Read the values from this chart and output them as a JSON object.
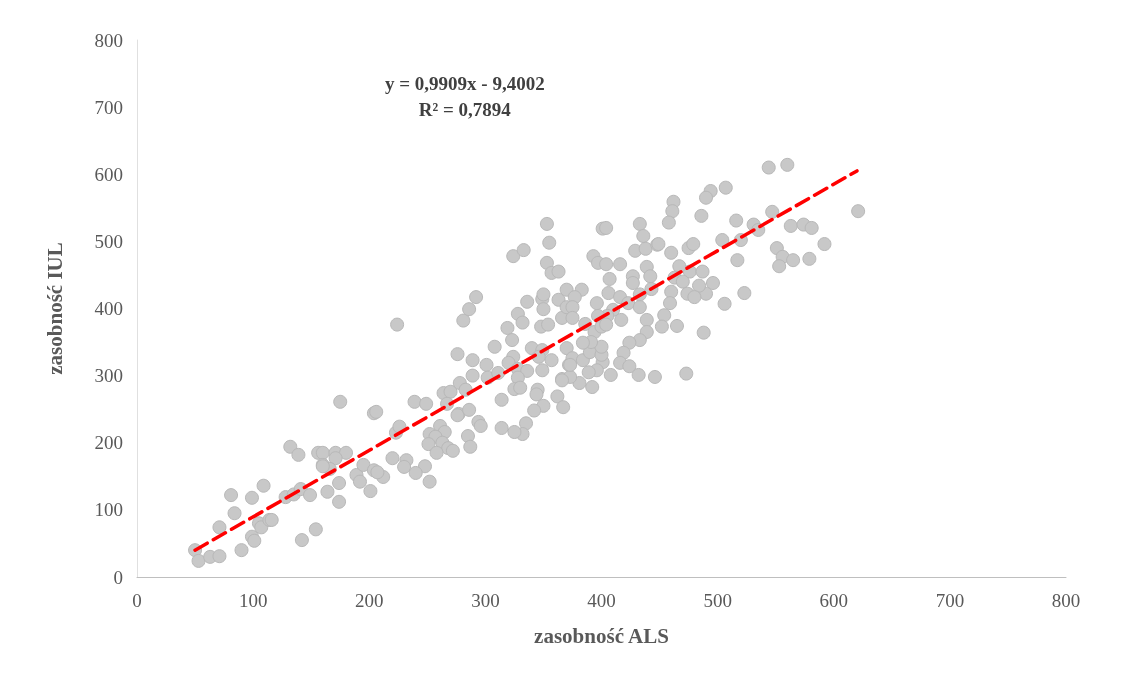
{
  "chart_data": {
    "type": "scatter",
    "xlabel": "zasobność ALS",
    "ylabel": "zasobność IUL",
    "annotations": [
      "y = 0,9909x - 9,4002",
      "R² = 0,7894"
    ],
    "xlim": [
      0,
      800
    ],
    "xticks": [
      0,
      100,
      200,
      300,
      400,
      500,
      600,
      700,
      800
    ],
    "ylim": [
      0,
      800
    ],
    "yticks": [
      0,
      100,
      200,
      300,
      400,
      500,
      600,
      700,
      800
    ],
    "grid": false,
    "marker": "circle",
    "series": [
      {
        "color": "#c8c8c8",
        "x": [
          50,
          53,
          63,
          71,
          71,
          84,
          81,
          90,
          99,
          109,
          99,
          101,
          105,
          107,
          114,
          116,
          142,
          154,
          128,
          135,
          141,
          149,
          132,
          139,
          156,
          160,
          171,
          180,
          171,
          160,
          166,
          175,
          189,
          192,
          201,
          174,
          174,
          164,
          204,
          195,
          224,
          206,
          239,
          249,
          276,
          281,
          286,
          264,
          270,
          278,
          267,
          277,
          223,
          226,
          252,
          261,
          265,
          257,
          251,
          263,
          268,
          258,
          272,
          220,
          232,
          230,
          248,
          160,
          204,
          212,
          240,
          292,
          289,
          301,
          302,
          289,
          283,
          276,
          286,
          294,
          296,
          285,
          287,
          252,
          207,
          308,
          319,
          323,
          328,
          332,
          336,
          349,
          350,
          348,
          354,
          363,
          366,
          370,
          340,
          349,
          357,
          346,
          324,
          320,
          328,
          336,
          328,
          311,
          325,
          330,
          345,
          344,
          349,
          366,
          314,
          362,
          367,
          350,
          342,
          335,
          332,
          325,
          314,
          370,
          372,
          324,
          333,
          353,
          355,
          353,
          357,
          363,
          401,
          404,
          433,
          436,
          429,
          438,
          393,
          397,
          404,
          416,
          448,
          407,
          427,
          439,
          442,
          427,
          433,
          443,
          370,
          383,
          377,
          350,
          396,
          375,
          375,
          406,
          416,
          423,
          433,
          410,
          417,
          405,
          439,
          397,
          386,
          394,
          400,
          404,
          439,
          433,
          424,
          419,
          416,
          424,
          432,
          408,
          401,
          396,
          389,
          392,
          381,
          373,
          366,
          375,
          373,
          384,
          390,
          400,
          400,
          391,
          384,
          544,
          560,
          621,
          507,
          494,
          490,
          462,
          461,
          458,
          486,
          516,
          547,
          531,
          535,
          563,
          574,
          581,
          592,
          551,
          556,
          553,
          565,
          579,
          517,
          504,
          520,
          523,
          506,
          496,
          490,
          484,
          476,
          487,
          467,
          475,
          479,
          460,
          449,
          463,
          470,
          460,
          459,
          474,
          480,
          454,
          465,
          452,
          488,
          446,
          473
        ],
        "values": [
          40,
          24,
          30,
          31,
          74,
          95,
          122,
          40,
          118,
          136,
          60,
          54,
          80,
          74,
          85,
          85,
          55,
          71,
          119,
          123,
          131,
          122,
          194,
          182,
          185,
          185,
          185,
          185,
          177,
          167,
          161,
          261,
          152,
          142,
          128,
          140,
          112,
          127,
          244,
          167,
          376,
          246,
          261,
          258,
          332,
          382,
          399,
          274,
          276,
          289,
          258,
          243,
          215,
          224,
          213,
          225,
          216,
          209,
          198,
          200,
          192,
          185,
          188,
          177,
          174,
          164,
          165,
          165,
          159,
          149,
          155,
          417,
          323,
          316,
          297,
          300,
          279,
          241,
          249,
          231,
          225,
          210,
          194,
          142,
          156,
          343,
          371,
          353,
          392,
          379,
          410,
          414,
          399,
          373,
          376,
          413,
          386,
          402,
          341,
          338,
          323,
          328,
          328,
          319,
          310,
          307,
          297,
          304,
          280,
          282,
          279,
          272,
          308,
          295,
          264,
          269,
          253,
          255,
          248,
          229,
          213,
          216,
          222,
          341,
          316,
          478,
          487,
          526,
          498,
          468,
          453,
          455,
          519,
          520,
          526,
          508,
          486,
          489,
          478,
          468,
          466,
          466,
          495,
          444,
          448,
          462,
          448,
          438,
          421,
          429,
          428,
          428,
          417,
          421,
          408,
          402,
          386,
          423,
          417,
          408,
          402,
          398,
          383,
          389,
          383,
          389,
          377,
          365,
          373,
          376,
          365,
          353,
          349,
          334,
          319,
          314,
          301,
          301,
          320,
          308,
          305,
          283,
          289,
          298,
          293,
          326,
          316,
          323,
          335,
          331,
          343,
          350,
          349,
          610,
          614,
          545,
          580,
          575,
          565,
          559,
          545,
          528,
          538,
          531,
          544,
          525,
          517,
          523,
          525,
          520,
          496,
          490,
          477,
          463,
          472,
          474,
          472,
          502,
          502,
          423,
          407,
          438,
          422,
          434,
          455,
          455,
          463,
          490,
          496,
          483,
          496,
          446,
          440,
          425,
          408,
          422,
          417,
          390,
          374,
          373,
          364,
          298,
          303
        ]
      },
      {
        "type": "line",
        "color": "#ff0000",
        "line_style": "dashed",
        "marker": "none",
        "x": [
          50,
          620
        ],
        "values": [
          40,
          605
        ]
      }
    ]
  }
}
